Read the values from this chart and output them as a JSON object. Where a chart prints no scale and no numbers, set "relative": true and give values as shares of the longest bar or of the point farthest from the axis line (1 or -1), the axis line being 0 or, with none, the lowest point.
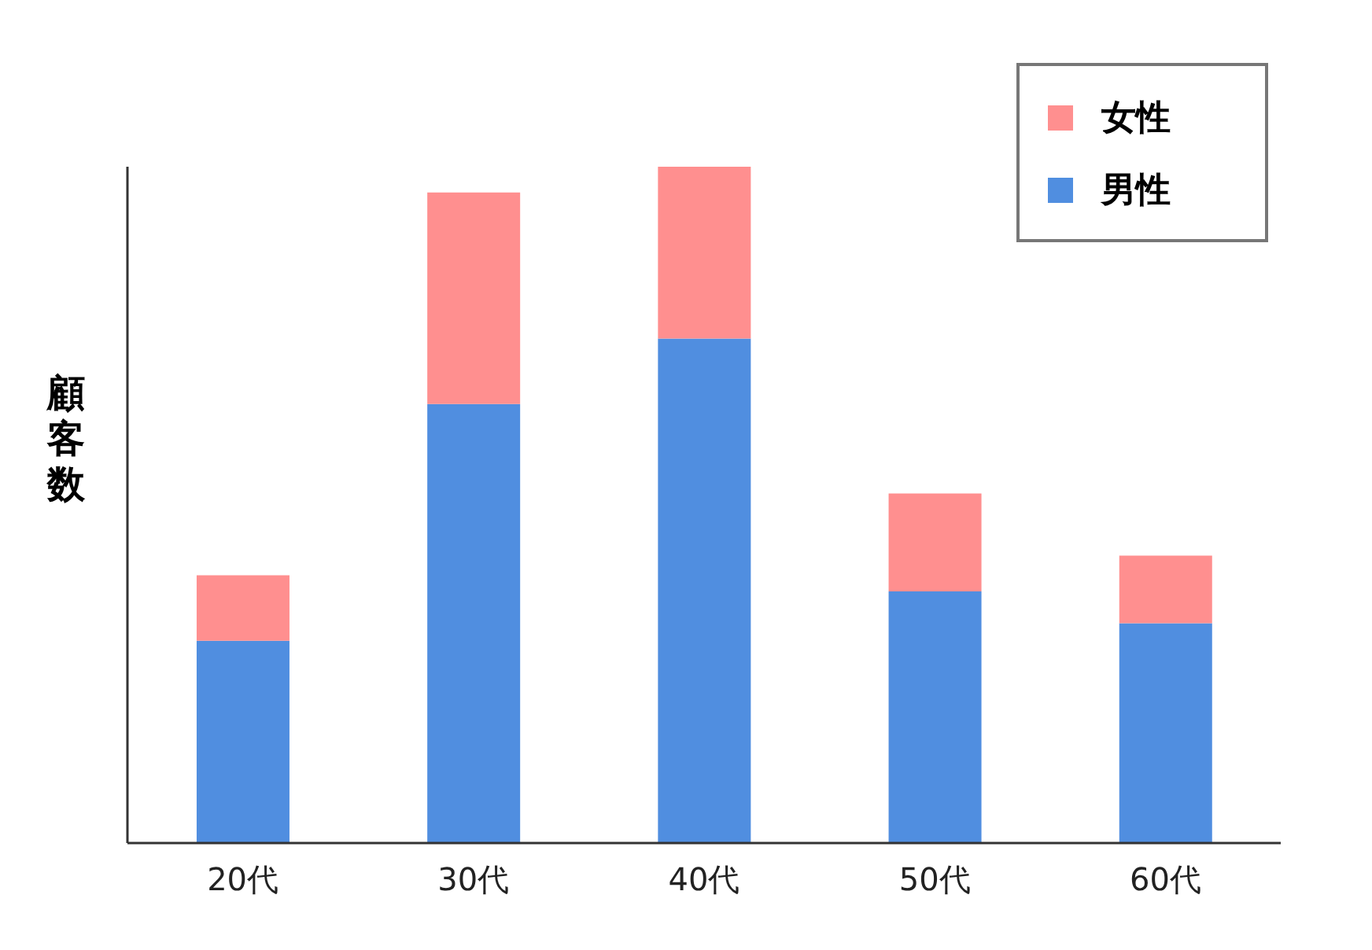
{
  "chart_data": {
    "type": "bar",
    "ylabel": "顧客数",
    "categories": [
      "20代",
      "30代",
      "40代",
      "50代",
      "60代"
    ],
    "stacked": true,
    "relative": true,
    "legend": "top right",
    "series": [
      {
        "name": "男性",
        "color": "#508ee0",
        "values": [
          0.299,
          0.649,
          0.746,
          0.372,
          0.325
        ]
      },
      {
        "name": "女性",
        "color": "#ff8f8f",
        "values": [
          0.097,
          0.313,
          0.254,
          0.145,
          0.1
        ]
      }
    ]
  }
}
